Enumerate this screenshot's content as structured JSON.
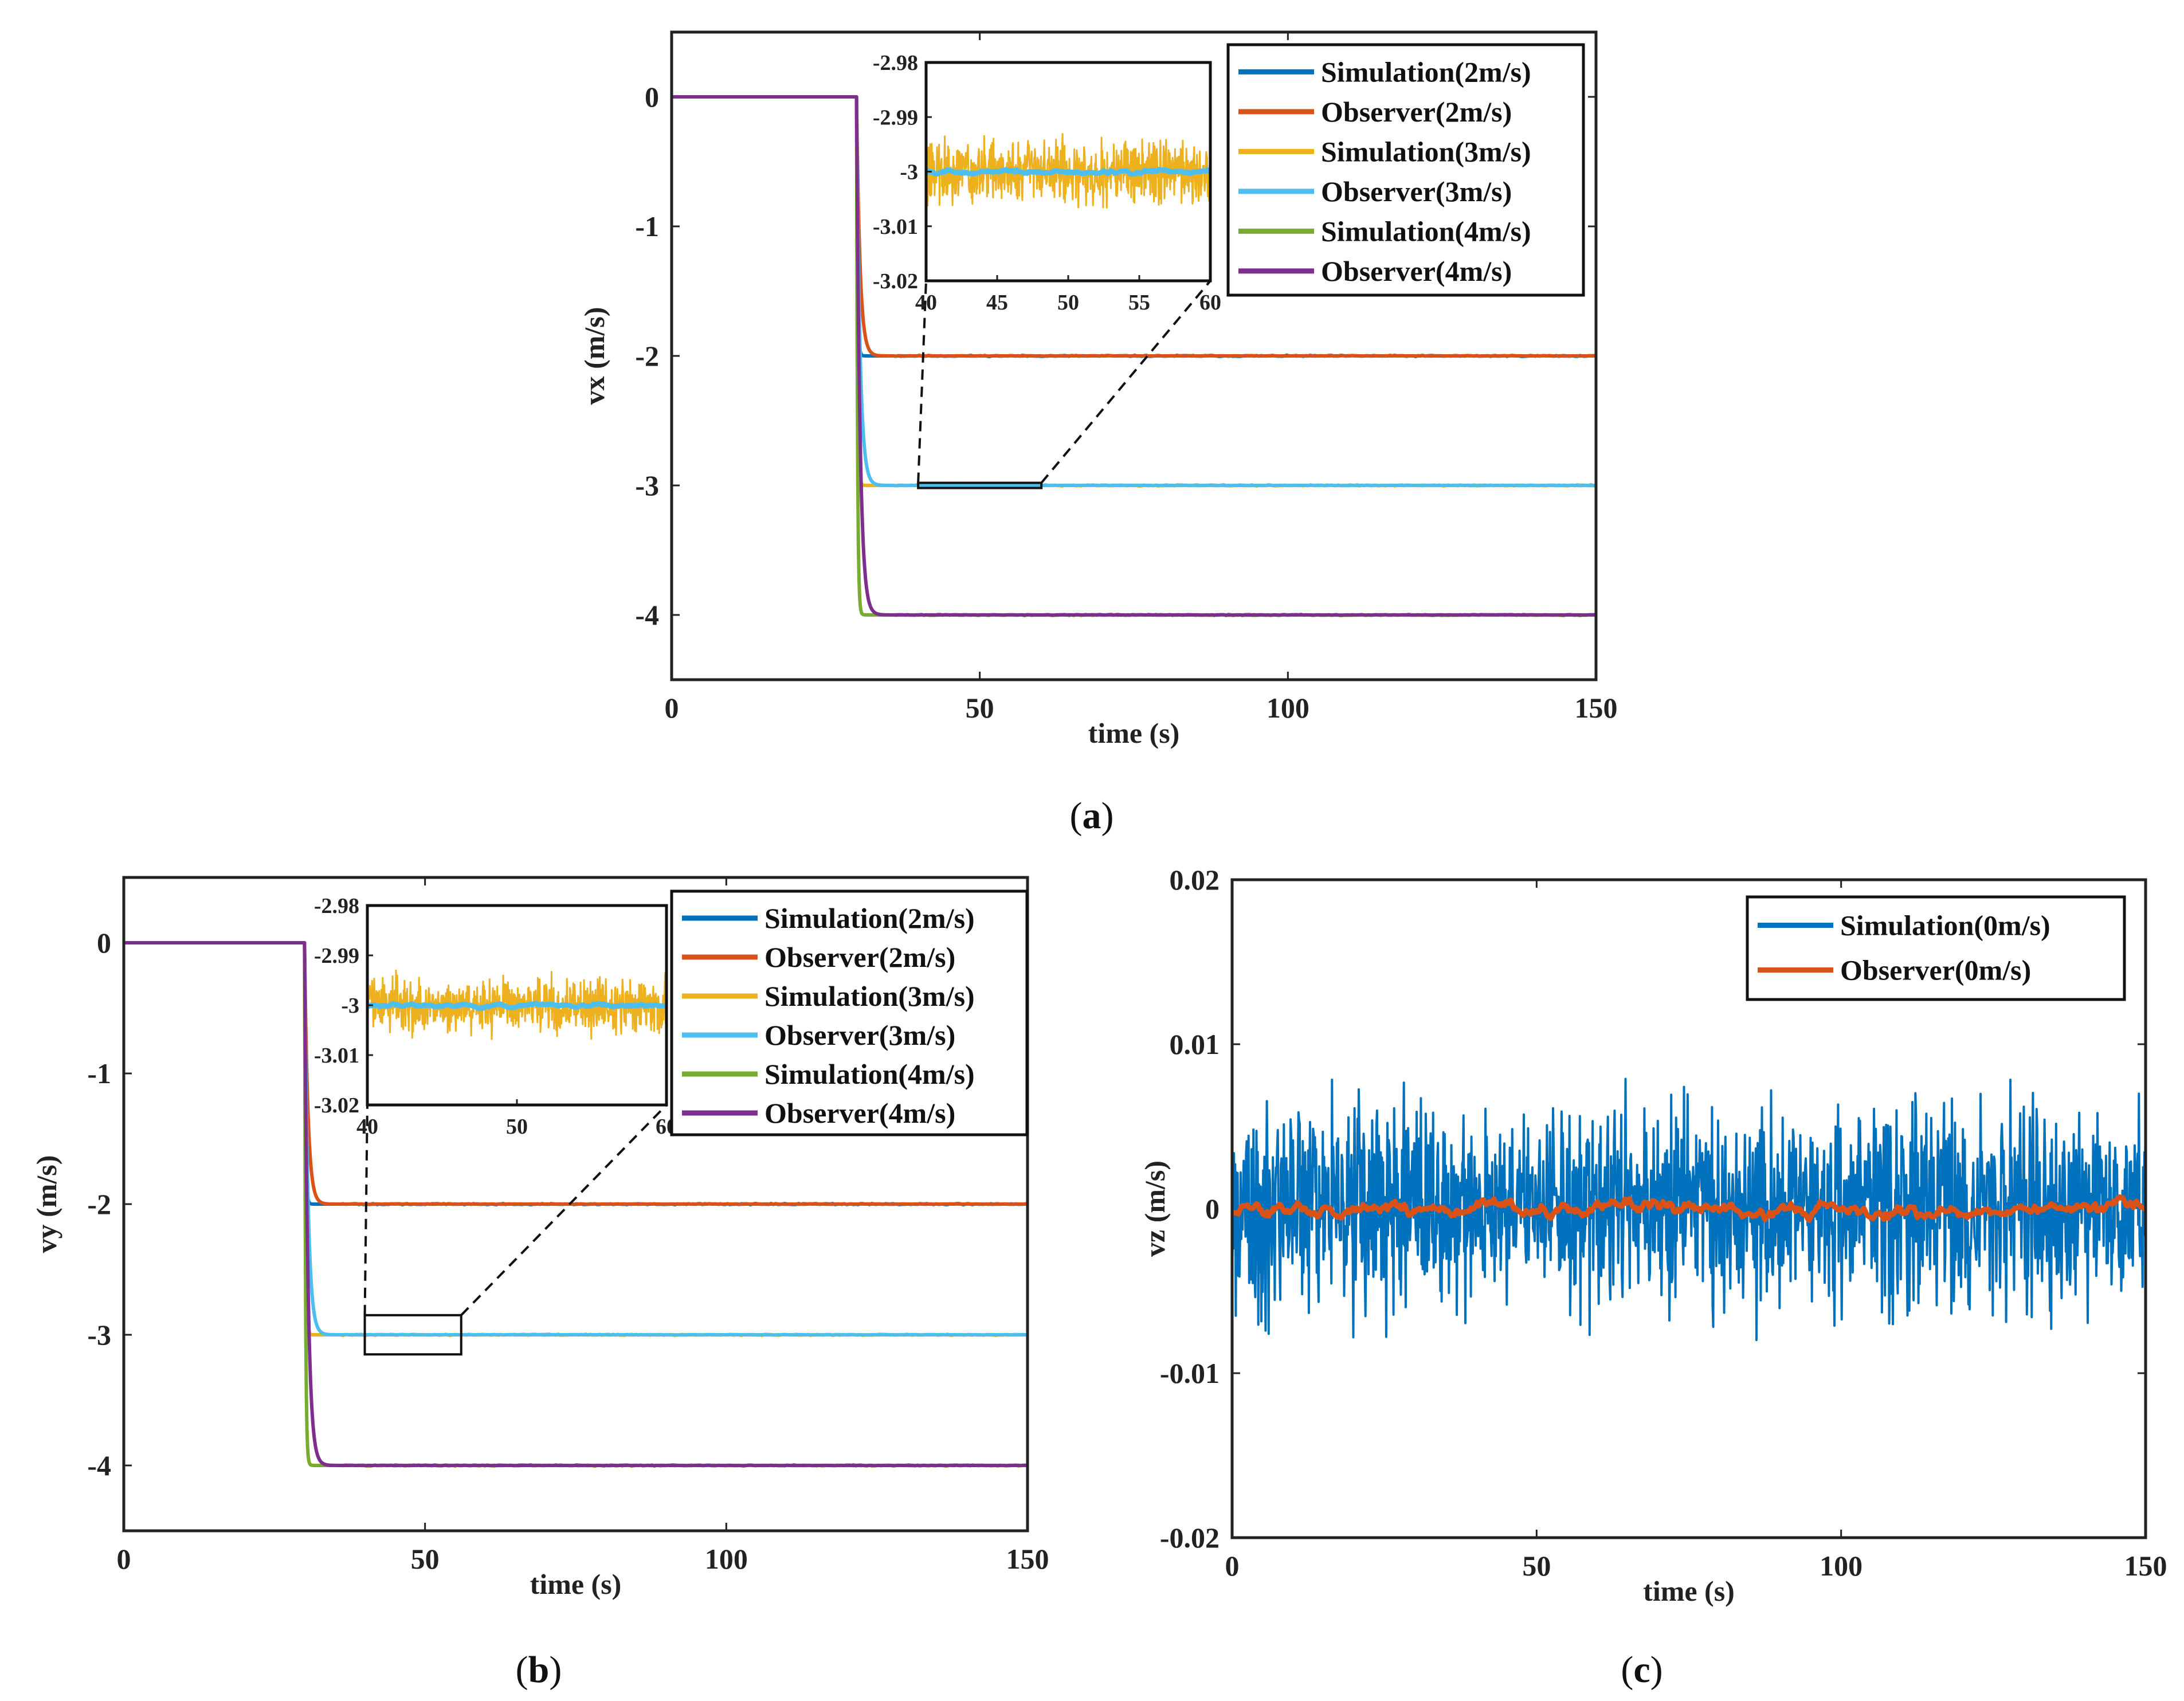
{
  "chart_data": [
    {
      "id": "a",
      "type": "line",
      "panel_label": "a",
      "xlabel": "time (s)",
      "ylabel": "vx (m/s)",
      "xlim": [
        0,
        150
      ],
      "ylim": [
        -4.5,
        0.5
      ],
      "xticks": [
        0,
        50,
        100,
        150
      ],
      "yticks": [
        0,
        -1,
        -2,
        -3,
        -4
      ],
      "grid": false,
      "legend_position": "top-right",
      "step_time": 30,
      "series": [
        {
          "name": "Simulation(2m/s)",
          "color": "#0072BD",
          "initial": 0,
          "final": -2
        },
        {
          "name": "Observer(2m/s)",
          "color": "#D95319",
          "initial": 0,
          "final": -2
        },
        {
          "name": "Simulation(3m/s)",
          "color": "#EDB120",
          "initial": 0,
          "final": -3
        },
        {
          "name": "Observer(3m/s)",
          "color": "#4DBEEE",
          "initial": 0,
          "final": -3
        },
        {
          "name": "Simulation(4m/s)",
          "color": "#77AC30",
          "initial": 0,
          "final": -4
        },
        {
          "name": "Observer(4m/s)",
          "color": "#7E2F8E",
          "initial": 0,
          "final": -4
        }
      ],
      "zoom_box": {
        "xlim": [
          40,
          60
        ],
        "ylim": [
          -3.02,
          -2.98
        ]
      },
      "inset": {
        "xlim": [
          40,
          60
        ],
        "ylim": [
          -3.02,
          -2.98
        ],
        "xticks": [
          40,
          45,
          50,
          55,
          60
        ],
        "yticks": [
          -2.98,
          -2.99,
          -3,
          -3.01,
          -3.02
        ],
        "series": [
          {
            "name": "Simulation(3m/s)",
            "color": "#EDB120",
            "mean": -3.0,
            "noise_amplitude": 0.008
          },
          {
            "name": "Observer(3m/s)",
            "color": "#4DBEEE",
            "mean": -3.0,
            "noise_amplitude": 0.0008
          }
        ]
      }
    },
    {
      "id": "b",
      "type": "line",
      "panel_label": "b",
      "xlabel": "time (s)",
      "ylabel": "vy (m/s)",
      "xlim": [
        0,
        150
      ],
      "ylim": [
        -4.5,
        0.5
      ],
      "xticks": [
        0,
        50,
        100,
        150
      ],
      "yticks": [
        0,
        -1,
        -2,
        -3,
        -4
      ],
      "grid": false,
      "legend_position": "top-right",
      "step_time": 30,
      "series": [
        {
          "name": "Simulation(2m/s)",
          "color": "#0072BD",
          "initial": 0,
          "final": -2
        },
        {
          "name": "Observer(2m/s)",
          "color": "#D95319",
          "initial": 0,
          "final": -2
        },
        {
          "name": "Simulation(3m/s)",
          "color": "#EDB120",
          "initial": 0,
          "final": -3
        },
        {
          "name": "Observer(3m/s)",
          "color": "#4DBEEE",
          "initial": 0,
          "final": -3
        },
        {
          "name": "Simulation(4m/s)",
          "color": "#77AC30",
          "initial": 0,
          "final": -4
        },
        {
          "name": "Observer(4m/s)",
          "color": "#7E2F8E",
          "initial": 0,
          "final": -4
        }
      ],
      "zoom_box": {
        "xlim": [
          40,
          56
        ],
        "ylim": [
          -3.15,
          -2.85
        ]
      },
      "inset": {
        "xlim": [
          40,
          60
        ],
        "ylim": [
          -3.02,
          -2.98
        ],
        "xticks": [
          40,
          50,
          60
        ],
        "yticks": [
          -2.98,
          -2.99,
          -3,
          -3.01,
          -3.02
        ],
        "series": [
          {
            "name": "Simulation(3m/s)",
            "color": "#EDB120",
            "mean": -3.0,
            "noise_amplitude": 0.008
          },
          {
            "name": "Observer(3m/s)",
            "color": "#4DBEEE",
            "mean": -3.0,
            "noise_amplitude": 0.0008
          }
        ]
      }
    },
    {
      "id": "c",
      "type": "line",
      "panel_label": "c",
      "xlabel": "time (s)",
      "ylabel": "vz (m/s)",
      "xlim": [
        0,
        150
      ],
      "ylim": [
        -0.02,
        0.02
      ],
      "xticks": [
        0,
        50,
        100,
        150
      ],
      "yticks": [
        0.02,
        0.01,
        0,
        -0.01,
        -0.02
      ],
      "grid": false,
      "legend_position": "top-right",
      "series": [
        {
          "name": "Simulation(0m/s)",
          "color": "#0072BD",
          "mean": 0,
          "noise_amplitude": 0.009
        },
        {
          "name": "Observer(0m/s)",
          "color": "#D95319",
          "mean": 0,
          "noise_amplitude": 0.0009
        }
      ]
    }
  ]
}
